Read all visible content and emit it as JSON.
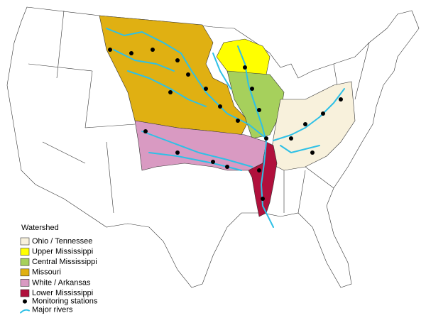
{
  "legend": {
    "title": "Watershed",
    "items": [
      {
        "label": "Ohio / Tennessee",
        "color": "#f8f1dc"
      },
      {
        "label": "Upper Mississippi",
        "color": "#ffff00"
      },
      {
        "label": "Central Mississippi",
        "color": "#a6d05c"
      },
      {
        "label": "Missouri",
        "color": "#e0b012"
      },
      {
        "label": "White / Arkansas",
        "color": "#d99ac2"
      },
      {
        "label": "Lower Mississippi",
        "color": "#b0103c"
      }
    ],
    "stations": "Monitoring stations",
    "rivers": "Major rivers"
  }
}
